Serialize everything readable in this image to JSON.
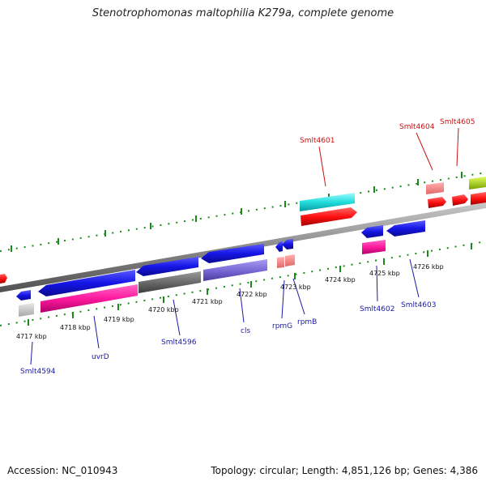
{
  "header": {
    "title": "Stenotrophomonas maltophilia K279a, complete genome"
  },
  "footer": {
    "accession": "Accession: NC_010943",
    "topology": "Topology: circular; Length: 4,851,126 bp; Genes: 4,386"
  },
  "map": {
    "ticks": [
      {
        "label": "4717 kbp",
        "pos": 4717
      },
      {
        "label": "4718 kbp",
        "pos": 4718
      },
      {
        "label": "4719 kbp",
        "pos": 4719
      },
      {
        "label": "4720 kbp",
        "pos": 4720
      },
      {
        "label": "4721 kbp",
        "pos": 4721
      },
      {
        "label": "4722 kbp",
        "pos": 4722
      },
      {
        "label": "4723 kbp",
        "pos": 4723
      },
      {
        "label": "4724 kbp",
        "pos": 4724
      },
      {
        "label": "4725 kbp",
        "pos": 4725
      },
      {
        "label": "4726 kbp",
        "pos": 4726
      }
    ],
    "gene_labels": [
      {
        "name": "Smlt4594",
        "color": "#1a1aa6"
      },
      {
        "name": "uvrD",
        "color": "#1a1aa6"
      },
      {
        "name": "Smlt4596",
        "color": "#1a1aa6"
      },
      {
        "name": "cls",
        "color": "#1a1aa6"
      },
      {
        "name": "rpmG",
        "color": "#1a1aa6"
      },
      {
        "name": "rpmB",
        "color": "#1a1aa6"
      },
      {
        "name": "Smlt4602",
        "color": "#1a1aa6"
      },
      {
        "name": "Smlt4603",
        "color": "#1a1aa6"
      },
      {
        "name": "Smlt4601",
        "color": "#cc1111"
      },
      {
        "name": "Smlt4604",
        "color": "#cc1111"
      },
      {
        "name": "Smlt4605",
        "color": "#cc1111"
      }
    ],
    "colors": {
      "forward_cds": "#ff1a1a",
      "reverse_cds": "#1a1aee",
      "rna_reverse": "#ff1aa0",
      "rna_forward": "#22dddd",
      "backbone": "#8a8a8a",
      "tick_green": "#1a8a1a"
    }
  }
}
